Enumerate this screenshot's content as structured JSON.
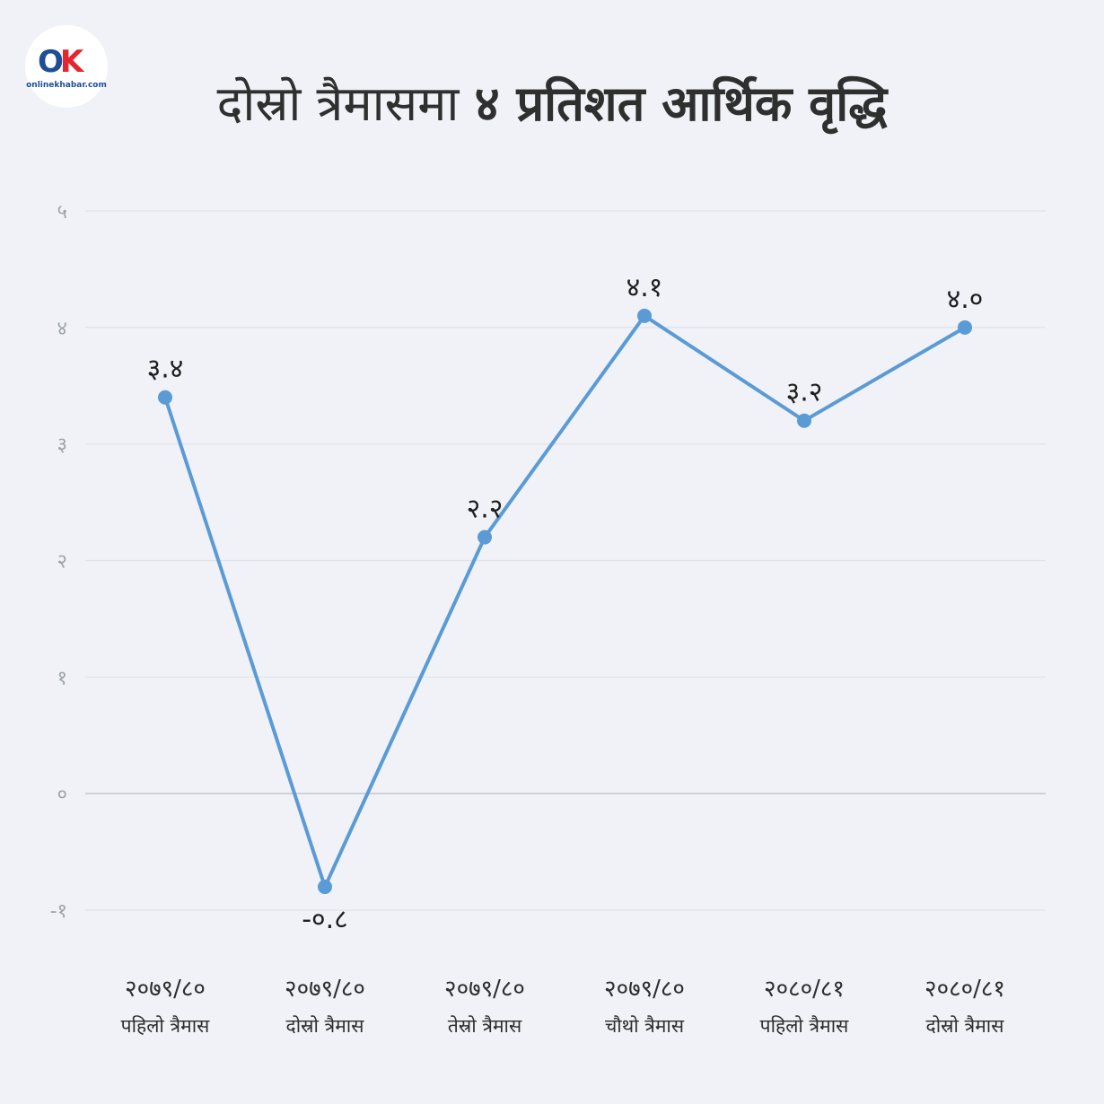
{
  "logo": {
    "mark_o": "O",
    "mark_k": "K",
    "wordmark": "onlinekhabar.com"
  },
  "title": {
    "lead": "दोस्रो त्रैमासमा",
    "emphasis": "४ प्रतिशत आर्थिक वृद्धि"
  },
  "colors": {
    "line": "#5b9bd5",
    "point": "#5b9bd5",
    "background": "#f0f2f7"
  },
  "chart_data": {
    "type": "line",
    "title": "दोस्रो त्रैमासमा ४ प्रतिशत आर्थिक वृद्धि",
    "xlabel": "",
    "ylabel": "",
    "ylim": [
      -1,
      5
    ],
    "yticks": [
      -1,
      0,
      1,
      2,
      3,
      4,
      5
    ],
    "ytick_labels": [
      "-१",
      "०",
      "१",
      "२",
      "३",
      "४",
      "५"
    ],
    "grid": true,
    "legend": "none",
    "categories": [
      {
        "line1": "२०७९/८०",
        "line2": "पहिलो त्रैमास"
      },
      {
        "line1": "२०७९/८०",
        "line2": "दोस्रो त्रैमास"
      },
      {
        "line1": "२०७९/८०",
        "line2": "तेस्रो त्रैमास"
      },
      {
        "line1": "२०७९/८०",
        "line2": "चौथो त्रैमास"
      },
      {
        "line1": "२०८०/८१",
        "line2": "पहिलो त्रैमास"
      },
      {
        "line1": "२०८०/८१",
        "line2": "दोस्रो त्रैमास"
      }
    ],
    "series": [
      {
        "values": [
          3.4,
          -0.8,
          2.2,
          4.1,
          3.2,
          4.0
        ],
        "data_labels": [
          "३.४",
          "-०.८",
          "२.२",
          "४.१",
          "३.२",
          "४.०"
        ]
      }
    ]
  }
}
